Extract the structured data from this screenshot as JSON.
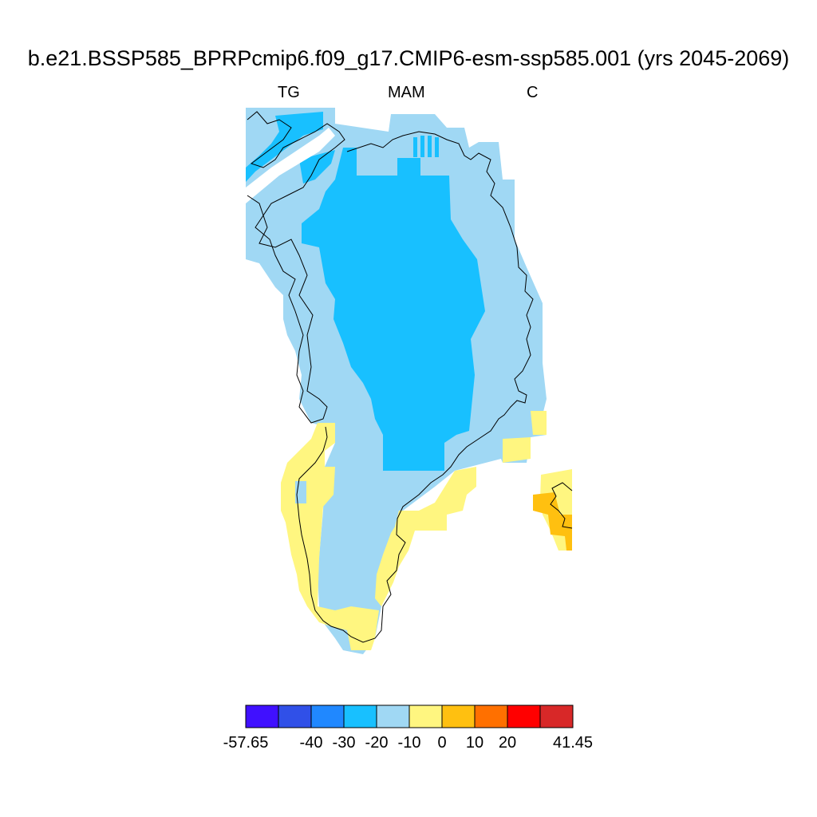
{
  "title": "b.e21.BSSP585_BPRPcmip6.f09_g17.CMIP6-esm-ssp585.001 (yrs 2045-2069)",
  "labels": {
    "left": "TG",
    "center": "MAM",
    "right": "C"
  },
  "colorbar": {
    "colors": [
      "#4010ff",
      "#3050e8",
      "#2088ff",
      "#18c0ff",
      "#a0d8f4",
      "#fff680",
      "#ffc010",
      "#ff7000",
      "#ff0000",
      "#d82828"
    ],
    "tick_labels": [
      "-57.65",
      "-40",
      "-30",
      "-20",
      "-10",
      "0",
      "10",
      "20",
      "41.45"
    ]
  },
  "legend_map": {
    "c1": "#18c0ff",
    "c2": "#a0d8f4",
    "c3": "#fff680",
    "c4": "#ffc010"
  }
}
